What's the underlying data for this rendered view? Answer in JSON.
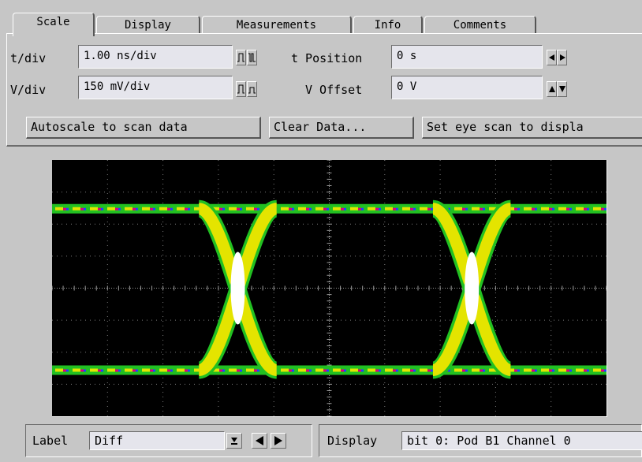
{
  "tabs": [
    {
      "label": "Scale",
      "active": true
    },
    {
      "label": "Display",
      "active": false
    },
    {
      "label": "Measurements",
      "active": false
    },
    {
      "label": "Info",
      "active": false
    },
    {
      "label": "Comments",
      "active": false
    }
  ],
  "scale": {
    "tdiv_label": "t/div",
    "tdiv_value": "1.00 ns/div",
    "vdiv_label": "V/div",
    "vdiv_value": "150 mV/div",
    "tpos_label": "t Position",
    "tpos_value": "0 s",
    "voff_label": "V Offset",
    "voff_value": "0 V"
  },
  "actions": {
    "autoscale_label": "Autoscale to scan data",
    "clear_label": "Clear Data...",
    "seteye_label": "Set eye scan to displa"
  },
  "bottom": {
    "label_label": "Label",
    "label_value": "Diff",
    "display_label": "Display",
    "display_value": "bit 0: Pod B1 Channel 0"
  },
  "colors": {
    "background": "#c6c6c6",
    "field": "#e5e5ec",
    "screen": "#000000",
    "eye_green": "#22c022",
    "eye_yellow": "#e4e400",
    "eye_core": "#ffffff"
  },
  "icons": {
    "step_up": "pulse-step-icon",
    "arrows": "arrow-left-right-icons",
    "dropdown": "dropdown-arrow-icon"
  }
}
